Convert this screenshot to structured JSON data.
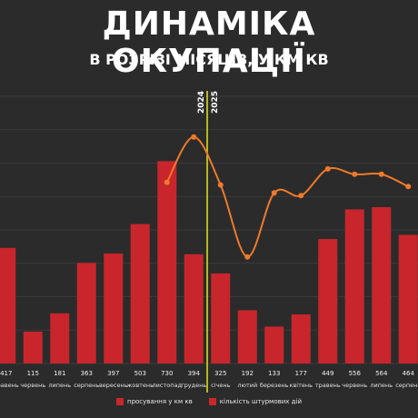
{
  "title": "ДИНАМІКА ОКУПАЦІЇ",
  "subtitle": "В РОЗРІЗІ МІСЯЦІВ, У КМ КВ",
  "colors": {
    "background": "#2b2b2b",
    "bar": "#c8262c",
    "line": "#f07a2a",
    "divider": "#e6e61e",
    "grid": "#3b3b3b"
  },
  "chart_data": {
    "type": "bar",
    "categories": [
      "травень",
      "червень",
      "липень",
      "серпень",
      "вересень",
      "жовтень",
      "листопад",
      "грудень",
      "січень",
      "лютий",
      "березень",
      "квітень",
      "травень",
      "червень",
      "липень",
      "серпень"
    ],
    "year_markers": [
      {
        "label": "2024",
        "after_index": 7
      },
      {
        "label": "2025",
        "after_index": 7
      }
    ],
    "series": [
      {
        "name": "просування у км кв",
        "kind": "bar",
        "value_labels": [
          "417",
          "115",
          "181",
          "363",
          "397",
          "503",
          "730",
          "394",
          "325",
          "192",
          "133",
          "177",
          "449",
          "556",
          "564",
          "464"
        ],
        "values": [
          417,
          115,
          181,
          363,
          397,
          503,
          730,
          394,
          325,
          192,
          133,
          177,
          449,
          556,
          564,
          464
        ]
      },
      {
        "name": "кількість штурмових дій",
        "kind": "line",
        "values": [
          null,
          null,
          null,
          null,
          null,
          null,
          3400,
          4250,
          3350,
          2000,
          3200,
          3150,
          3650,
          3550,
          3550,
          3320
        ]
      }
    ],
    "bar_ylim": [
      0,
      1000
    ],
    "line_ylim": [
      0,
      5200
    ],
    "grid": true,
    "legend_position": "bottom"
  }
}
